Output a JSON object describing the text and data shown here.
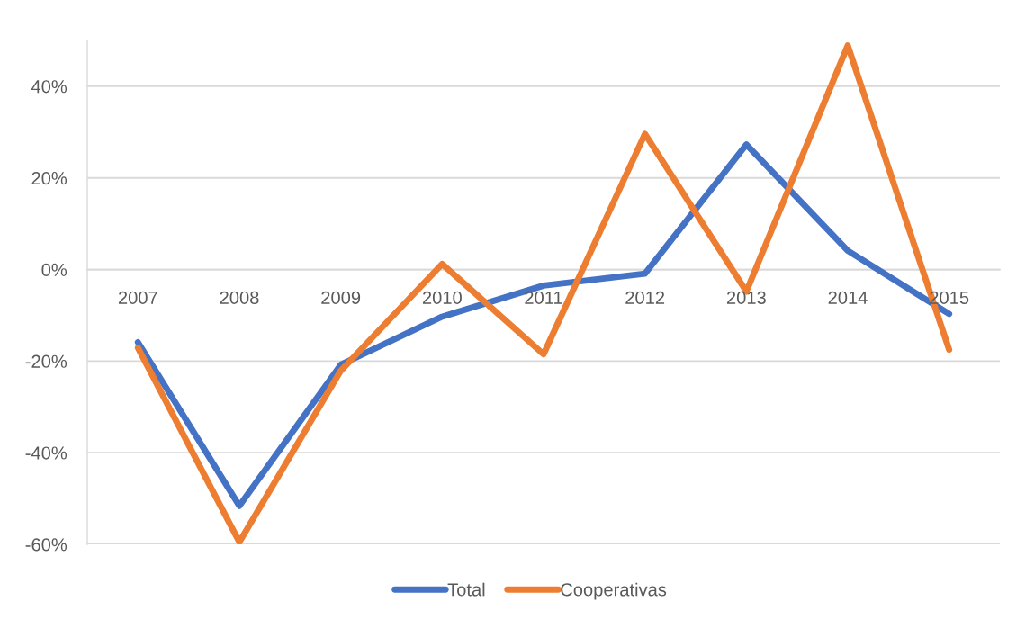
{
  "chart_data": {
    "type": "line",
    "categories": [
      "2007",
      "2008",
      "2009",
      "2010",
      "2011",
      "2012",
      "2013",
      "2014",
      "2015"
    ],
    "series": [
      {
        "name": "Total",
        "color": "#4472c4",
        "values": [
          -15.9,
          -51.6,
          -20.8,
          -10.3,
          -3.5,
          -0.9,
          27.3,
          4.1,
          -9.7
        ]
      },
      {
        "name": "Cooperativas",
        "color": "#ed7d31",
        "values": [
          -17.1,
          -59.5,
          -22.1,
          1.2,
          -18.5,
          29.6,
          -4.8,
          48.9,
          -17.5
        ]
      }
    ],
    "ylim": [
      -60,
      50
    ],
    "yticks": [
      {
        "value": -60,
        "label": "-60%"
      },
      {
        "value": -40,
        "label": "-40%"
      },
      {
        "value": -20,
        "label": "-20%"
      },
      {
        "value": 0,
        "label": "0%"
      },
      {
        "value": 20,
        "label": "20%"
      },
      {
        "value": 40,
        "label": "40%"
      }
    ],
    "grid": "y",
    "legend": "bottom",
    "line_style": "solid"
  }
}
